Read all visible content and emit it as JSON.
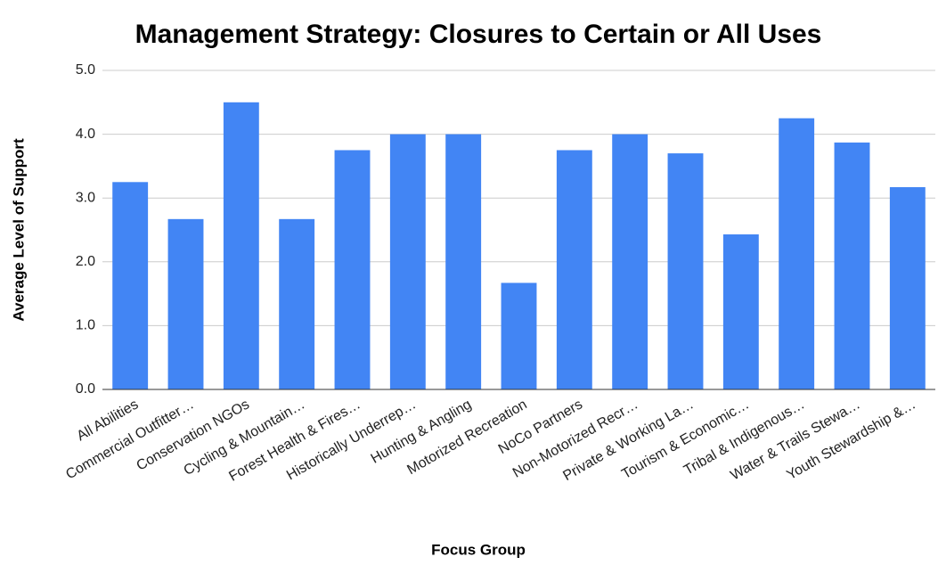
{
  "chart_data": {
    "type": "bar",
    "title": "Management Strategy: Closures to Certain or All Uses",
    "x_label": "Focus Group",
    "y_label": "Average Level of Support",
    "categories": [
      "All Abilities",
      "Commercial Outfitter…",
      "Conservation NGOs",
      "Cycling & Mountain…",
      "Forest Health & Fires…",
      "Historically Underrep…",
      "Hunting & Angling",
      "Motorized Recreation",
      "NoCo Partners",
      "Non-Motorized Recr…",
      "Private & Working La…",
      "Tourism & Economic…",
      "Tribal & Indigenous…",
      "Water & Trails Stewa…",
      "Youth Stewardship &…"
    ],
    "values": [
      3.25,
      2.67,
      4.5,
      2.67,
      3.75,
      4.0,
      4.0,
      1.67,
      3.75,
      4.0,
      3.7,
      2.43,
      4.25,
      3.87,
      3.17
    ],
    "color": "#4285f4",
    "ylim": [
      0,
      5
    ],
    "yticks": [
      {
        "value": 0,
        "label": "0.0"
      },
      {
        "value": 1,
        "label": "1.0"
      },
      {
        "value": 2,
        "label": "2.0"
      },
      {
        "value": 3,
        "label": "3.0"
      },
      {
        "value": 4,
        "label": "4.0"
      },
      {
        "value": 5,
        "label": "5.0"
      }
    ],
    "grid": true
  }
}
